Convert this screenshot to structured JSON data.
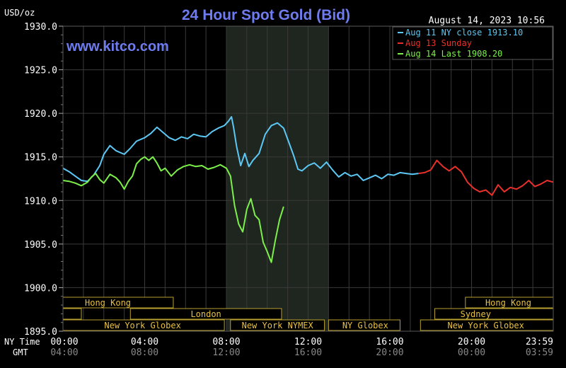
{
  "chart_data": {
    "type": "line",
    "title": "24 Hour Spot Gold (Bid)",
    "watermark": "www.kitco.com",
    "ylabel": "USD/oz",
    "datetime": "August 14, 2023 10:56",
    "ylim": [
      1895,
      1930
    ],
    "yticks": [
      "1930.0",
      "1925.0",
      "1920.0",
      "1915.0",
      "1910.0",
      "1905.0",
      "1900.0",
      "1895.0"
    ],
    "xlim": [
      0,
      24
    ],
    "xticks": [
      {
        "ny": "00:00",
        "gmt": "04:00"
      },
      {
        "ny": "04:00",
        "gmt": "08:00"
      },
      {
        "ny": "08:00",
        "gmt": "12:00"
      },
      {
        "ny": "12:00",
        "gmt": "16:00"
      },
      {
        "ny": "16:00",
        "gmt": "20:00"
      },
      {
        "ny": "20:00",
        "gmt": "00:00"
      },
      {
        "ny": "23:59",
        "gmt": "03:59"
      }
    ],
    "row_labels": {
      "ny": "NY Time",
      "gmt": "GMT"
    },
    "colors": {
      "aug11": "#5bc8f5",
      "aug13": "#e8302a",
      "aug14": "#7cf04a",
      "title": "#6f7cf0",
      "grid": "#3a3a3a",
      "axis_text": "#ffffff",
      "session_text": "#e8c040",
      "shade": "#1f261f"
    },
    "legend": {
      "placement": "top-right",
      "entries": [
        {
          "label": "Aug 11 NY close 1913.10",
          "color": "#5bc8f5"
        },
        {
          "label": "Aug 13 Sunday",
          "color": "#e8302a"
        },
        {
          "label": "Aug 14 Last 1908.20",
          "color": "#7cf04a"
        }
      ]
    },
    "shaded_range": [
      8,
      13
    ],
    "sessions": [
      {
        "name": "Hong Kong",
        "row": 1,
        "start": 0,
        "end": 5.4,
        "label_at": 2.2
      },
      {
        "name": "",
        "row": 2,
        "start": 0,
        "end": 0.9
      },
      {
        "name": "London",
        "row": 2,
        "start": 3.3,
        "end": 10.7,
        "label_at": 7.0
      },
      {
        "name": "New York Globex",
        "row": 3,
        "start": 0,
        "end": 7.9,
        "label_at": 3.9
      },
      {
        "name": "New York NYMEX",
        "row": 3,
        "start": 8.2,
        "end": 12.8,
        "label_at": 10.5
      },
      {
        "name": "NY Globex",
        "row": 3,
        "start": 13.0,
        "end": 16.5,
        "label_at": 14.8
      },
      {
        "name": "Hong Kong",
        "row": 1,
        "start": 19.7,
        "end": 24,
        "label_at": 21.8
      },
      {
        "name": "Sydney",
        "row": 2,
        "start": 18.2,
        "end": 24,
        "label_at": 20.2
      },
      {
        "name": "New York Globex",
        "row": 3,
        "start": 17.5,
        "end": 24,
        "label_at": 20.7
      }
    ],
    "series": [
      {
        "name": "Aug 11 NY close 1913.10",
        "color": "#5bc8f5",
        "x": [
          0,
          0.3,
          0.6,
          0.9,
          1.2,
          1.5,
          1.8,
          2.0,
          2.3,
          2.6,
          3.0,
          3.3,
          3.6,
          4.0,
          4.3,
          4.6,
          4.9,
          5.2,
          5.5,
          5.8,
          6.1,
          6.4,
          6.7,
          7.0,
          7.3,
          7.6,
          7.9,
          8.1,
          8.25,
          8.35,
          8.5,
          8.7,
          8.9,
          9.1,
          9.3,
          9.6,
          9.9,
          10.2,
          10.5,
          10.8,
          11.1,
          11.3,
          11.5,
          11.7,
          12.0,
          12.3,
          12.6,
          12.9,
          13.2,
          13.5,
          13.8,
          14.1,
          14.4,
          14.7,
          15.0,
          15.3,
          15.6,
          15.9,
          16.2,
          16.5,
          16.8,
          17.1,
          17.4
        ],
        "y": [
          1913.7,
          1913.3,
          1912.8,
          1912.3,
          1912.2,
          1912.9,
          1914.0,
          1915.3,
          1916.3,
          1915.7,
          1915.3,
          1916.0,
          1916.8,
          1917.2,
          1917.7,
          1918.4,
          1917.8,
          1917.2,
          1916.9,
          1917.3,
          1917.1,
          1917.6,
          1917.4,
          1917.3,
          1917.9,
          1918.3,
          1918.6,
          1919.1,
          1919.6,
          1918.4,
          1916.2,
          1914.0,
          1915.4,
          1913.9,
          1914.6,
          1915.4,
          1917.6,
          1918.6,
          1918.9,
          1918.3,
          1916.4,
          1915.1,
          1913.6,
          1913.4,
          1914.0,
          1914.3,
          1913.7,
          1914.4,
          1913.5,
          1912.7,
          1913.2,
          1912.8,
          1913.0,
          1912.3,
          1912.6,
          1912.9,
          1912.5,
          1913.0,
          1912.9,
          1913.2,
          1913.1,
          1913.0,
          1913.1
        ]
      },
      {
        "name": "Aug 13 Sunday",
        "color": "#e8302a",
        "x": [
          17.4,
          17.7,
          18.0,
          18.3,
          18.6,
          18.9,
          19.2,
          19.5,
          19.8,
          20.1,
          20.4,
          20.7,
          21.0,
          21.3,
          21.6,
          21.9,
          22.2,
          22.5,
          22.8,
          23.1,
          23.4,
          23.7,
          24.0
        ],
        "y": [
          1913.1,
          1913.2,
          1913.5,
          1914.6,
          1913.9,
          1913.4,
          1913.9,
          1913.3,
          1912.1,
          1911.4,
          1911.0,
          1911.2,
          1910.6,
          1911.8,
          1911.0,
          1911.5,
          1911.3,
          1911.7,
          1912.3,
          1911.6,
          1911.9,
          1912.3,
          1912.1
        ]
      },
      {
        "name": "Aug 14 Last 1908.20",
        "color": "#7cf04a",
        "x": [
          0,
          0.3,
          0.6,
          0.9,
          1.2,
          1.4,
          1.6,
          1.8,
          2.0,
          2.3,
          2.6,
          2.8,
          3.0,
          3.2,
          3.4,
          3.6,
          3.8,
          4.0,
          4.2,
          4.4,
          4.6,
          4.8,
          5.0,
          5.3,
          5.6,
          5.9,
          6.2,
          6.5,
          6.8,
          7.1,
          7.4,
          7.7,
          8.0,
          8.2,
          8.4,
          8.6,
          8.8,
          9.0,
          9.2,
          9.4,
          9.6,
          9.8,
          10.0,
          10.2,
          10.4,
          10.6,
          10.8
        ],
        "y": [
          1912.3,
          1912.2,
          1912.0,
          1911.7,
          1912.1,
          1912.7,
          1913.1,
          1912.4,
          1912.0,
          1913.0,
          1912.6,
          1912.1,
          1911.3,
          1912.2,
          1912.8,
          1914.2,
          1914.7,
          1915.0,
          1914.6,
          1915.0,
          1914.3,
          1913.4,
          1913.7,
          1912.8,
          1913.5,
          1913.9,
          1914.1,
          1913.9,
          1914.0,
          1913.6,
          1913.8,
          1914.1,
          1913.7,
          1912.8,
          1909.4,
          1907.3,
          1906.4,
          1909.0,
          1910.2,
          1908.3,
          1907.8,
          1905.2,
          1904.1,
          1902.9,
          1905.5,
          1907.8,
          1909.3
        ]
      }
    ]
  }
}
